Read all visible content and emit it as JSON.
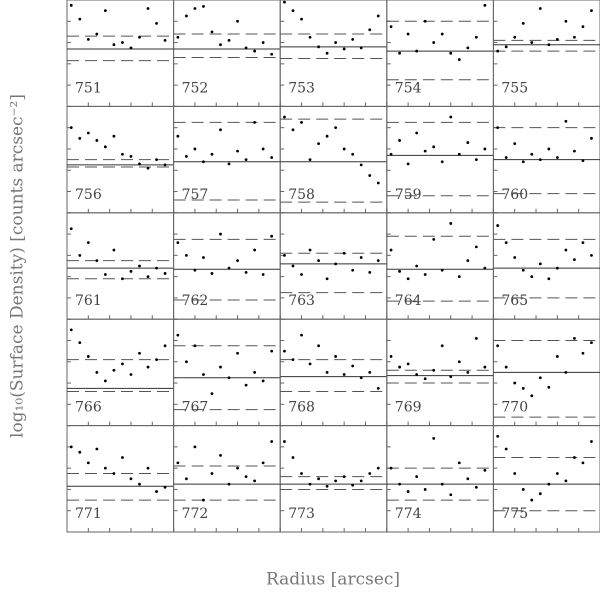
{
  "figure": {
    "xlabel": "Radius [arcsec]",
    "ylabel": "log₁₀(Surface Density) [counts arcsec⁻²]"
  },
  "chart_data": [
    {
      "type": "scatter",
      "label": "751",
      "x": [
        0.4,
        1.2,
        2.0,
        2.8,
        3.6,
        4.4,
        5.2,
        6.0,
        6.8,
        7.6,
        8.4,
        9.2
      ],
      "values": [
        9.5,
        8.2,
        6.3,
        6.8,
        9.0,
        5.8,
        6.0,
        5.5,
        6.5,
        9.2,
        7.8,
        6.2
      ],
      "mean": 5.4,
      "dashed": [
        6.6,
        4.3
      ],
      "xlim": [
        0,
        10
      ],
      "ylim": [
        0,
        10
      ],
      "xticks": [
        0,
        2,
        4,
        6,
        8,
        10
      ],
      "yticks": [
        0,
        2,
        4,
        6,
        8,
        10
      ]
    },
    {
      "type": "scatter",
      "label": "752",
      "x": [
        0.4,
        1.2,
        2.0,
        2.8,
        3.6,
        4.4,
        5.2,
        6.0,
        6.8,
        7.6,
        8.4,
        9.2
      ],
      "values": [
        6.5,
        8.5,
        9.2,
        9.4,
        7.0,
        5.8,
        6.2,
        8.0,
        5.5,
        5.2,
        6.0,
        4.9
      ],
      "mean": 5.4,
      "dashed": [
        6.8,
        4.6
      ],
      "xlim": [
        0,
        10
      ],
      "ylim": [
        0,
        10
      ],
      "xticks": [
        0,
        2,
        4,
        6,
        8,
        10
      ],
      "yticks": [
        0,
        2,
        4,
        6,
        8,
        10
      ]
    },
    {
      "type": "scatter",
      "label": "753",
      "x": [
        0.4,
        1.2,
        2.0,
        2.8,
        3.6,
        4.4,
        5.2,
        6.0,
        6.8,
        7.6,
        8.4,
        9.2
      ],
      "values": [
        9.8,
        9.0,
        8.2,
        6.5,
        5.6,
        5.0,
        6.0,
        5.4,
        6.3,
        5.5,
        7.2,
        8.5
      ],
      "mean": 5.6,
      "dashed": [
        6.8,
        4.5
      ],
      "xlim": [
        0,
        10
      ],
      "ylim": [
        0,
        10
      ],
      "xticks": [
        0,
        2,
        4,
        6,
        8,
        10
      ],
      "yticks": [
        0,
        2,
        4,
        6,
        8,
        10
      ]
    },
    {
      "type": "scatter",
      "label": "754",
      "x": [
        0.4,
        1.2,
        2.0,
        2.8,
        3.6,
        4.4,
        5.2,
        6.0,
        6.8,
        7.6,
        8.4,
        9.2
      ],
      "values": [
        7.5,
        5.0,
        6.8,
        5.2,
        8.0,
        6.0,
        6.8,
        5.0,
        4.4,
        5.5,
        6.5,
        9.5
      ],
      "mean": 5.2,
      "dashed": [
        8.0,
        2.5
      ],
      "xlim": [
        0,
        10
      ],
      "ylim": [
        0,
        10
      ],
      "xticks": [
        0,
        2,
        4,
        6,
        8,
        10
      ],
      "yticks": [
        0,
        2,
        4,
        6,
        8,
        10
      ]
    },
    {
      "type": "scatter",
      "label": "755",
      "x": [
        0.4,
        1.2,
        2.0,
        2.8,
        3.6,
        4.4,
        5.2,
        6.0,
        6.8,
        7.6,
        8.4,
        9.2
      ],
      "values": [
        5.2,
        5.6,
        6.5,
        7.8,
        6.0,
        9.2,
        5.8,
        6.3,
        8.0,
        6.5,
        7.5,
        9.0
      ],
      "mean": 5.8,
      "dashed": [
        6.2,
        5.2
      ],
      "xlim": [
        0,
        10
      ],
      "ylim": [
        0,
        10
      ],
      "xticks": [
        0,
        2,
        4,
        6,
        8,
        10
      ],
      "yticks": [
        0,
        2,
        4,
        6,
        8,
        10
      ]
    },
    {
      "type": "scatter",
      "label": "756",
      "x": [
        0.4,
        1.2,
        2.0,
        2.8,
        3.6,
        4.4,
        5.2,
        6.0,
        6.8,
        7.6,
        8.4,
        9.2
      ],
      "values": [
        8.0,
        7.0,
        7.5,
        6.8,
        6.2,
        7.2,
        5.5,
        5.3,
        4.6,
        4.2,
        5.0,
        4.5
      ],
      "mean": 4.5,
      "dashed": [
        5.0,
        4.3
      ],
      "xlim": [
        0,
        10
      ],
      "ylim": [
        0,
        10
      ],
      "xticks": [
        0,
        2,
        4,
        6,
        8,
        10
      ],
      "yticks": [
        0,
        2,
        4,
        6,
        8,
        10
      ]
    },
    {
      "type": "scatter",
      "label": "757",
      "x": [
        0.4,
        1.2,
        2.0,
        2.8,
        3.6,
        4.4,
        5.2,
        6.0,
        6.8,
        7.6,
        8.4,
        9.2
      ],
      "values": [
        7.2,
        5.3,
        6.0,
        4.8,
        5.5,
        7.8,
        4.6,
        5.8,
        5.0,
        8.5,
        6.0,
        5.2
      ],
      "mean": 4.8,
      "dashed": [
        8.5,
        1.2
      ],
      "xlim": [
        0,
        10
      ],
      "ylim": [
        0,
        10
      ],
      "xticks": [
        0,
        2,
        4,
        6,
        8,
        10
      ],
      "yticks": [
        0,
        2,
        4,
        6,
        8,
        10
      ]
    },
    {
      "type": "scatter",
      "label": "758",
      "x": [
        0.4,
        1.2,
        2.0,
        2.8,
        3.6,
        4.4,
        5.2,
        6.0,
        6.8,
        7.6,
        8.4,
        9.2
      ],
      "values": [
        9.0,
        7.8,
        8.5,
        5.0,
        6.5,
        7.2,
        8.0,
        6.0,
        5.5,
        4.5,
        3.5,
        2.8
      ],
      "mean": 4.8,
      "dashed": [
        8.8,
        1.0
      ],
      "xlim": [
        0,
        10
      ],
      "ylim": [
        0,
        10
      ],
      "xticks": [
        0,
        2,
        4,
        6,
        8,
        10
      ],
      "yticks": [
        0,
        2,
        4,
        6,
        8,
        10
      ]
    },
    {
      "type": "scatter",
      "label": "759",
      "x": [
        0.4,
        1.2,
        2.0,
        2.8,
        3.6,
        4.4,
        5.2,
        6.0,
        6.8,
        7.6,
        8.4,
        9.2
      ],
      "values": [
        5.5,
        6.8,
        4.6,
        7.5,
        5.8,
        6.2,
        4.8,
        9.0,
        5.5,
        6.6,
        5.0,
        6.0
      ],
      "mean": 5.4,
      "dashed": [
        8.5,
        1.6
      ],
      "xlim": [
        0,
        10
      ],
      "ylim": [
        0,
        10
      ],
      "xticks": [
        0,
        2,
        4,
        6,
        8,
        10
      ],
      "yticks": [
        0,
        2,
        4,
        6,
        8,
        10
      ]
    },
    {
      "type": "scatter",
      "label": "760",
      "x": [
        0.4,
        1.2,
        2.0,
        2.8,
        3.6,
        4.4,
        5.2,
        6.0,
        6.8,
        7.6,
        8.4,
        9.2
      ],
      "values": [
        8.0,
        5.2,
        6.5,
        4.8,
        5.5,
        5.0,
        6.0,
        5.2,
        8.6,
        5.8,
        4.9,
        7.0
      ],
      "mean": 5.0,
      "dashed": [
        8.0,
        1.8
      ],
      "xlim": [
        0,
        10
      ],
      "ylim": [
        0,
        10
      ],
      "xticks": [
        0,
        2,
        4,
        6,
        8,
        10
      ],
      "yticks": [
        0,
        2,
        4,
        6,
        8,
        10
      ]
    },
    {
      "type": "scatter",
      "label": "761",
      "x": [
        0.4,
        1.2,
        2.0,
        2.8,
        3.6,
        4.4,
        5.2,
        6.0,
        6.8,
        7.6,
        8.4,
        9.2
      ],
      "values": [
        8.5,
        6.0,
        7.2,
        5.5,
        4.2,
        6.5,
        3.8,
        4.5,
        5.0,
        4.0,
        4.8,
        4.3
      ],
      "mean": 4.8,
      "dashed": [
        5.5,
        3.8
      ],
      "xlim": [
        0,
        10
      ],
      "ylim": [
        0,
        10
      ],
      "xticks": [
        0,
        2,
        4,
        6,
        8,
        10
      ],
      "yticks": [
        0,
        2,
        4,
        6,
        8,
        10
      ]
    },
    {
      "type": "scatter",
      "label": "762",
      "x": [
        0.4,
        1.2,
        2.0,
        2.8,
        3.6,
        4.4,
        5.2,
        6.0,
        6.8,
        7.6,
        8.4,
        9.2
      ],
      "values": [
        7.2,
        6.0,
        4.6,
        5.8,
        4.3,
        8.0,
        4.8,
        5.5,
        4.4,
        6.5,
        4.2,
        7.8
      ],
      "mean": 4.7,
      "dashed": [
        7.5,
        1.8
      ],
      "xlim": [
        0,
        10
      ],
      "ylim": [
        0,
        10
      ],
      "xticks": [
        0,
        2,
        4,
        6,
        8,
        10
      ],
      "yticks": [
        0,
        2,
        4,
        6,
        8,
        10
      ]
    },
    {
      "type": "scatter",
      "label": "763",
      "x": [
        0.4,
        1.2,
        2.0,
        2.8,
        3.6,
        4.4,
        5.2,
        6.0,
        6.8,
        7.6,
        8.4,
        9.2
      ],
      "values": [
        6.0,
        5.0,
        4.2,
        6.5,
        5.5,
        3.8,
        5.2,
        6.2,
        4.6,
        5.8,
        4.4,
        5.5
      ],
      "mean": 5.2,
      "dashed": [
        6.2,
        2.5
      ],
      "xlim": [
        0,
        10
      ],
      "ylim": [
        0,
        10
      ],
      "xticks": [
        0,
        2,
        4,
        6,
        8,
        10
      ],
      "yticks": [
        0,
        2,
        4,
        6,
        8,
        10
      ]
    },
    {
      "type": "scatter",
      "label": "764",
      "x": [
        0.4,
        1.2,
        2.0,
        2.8,
        3.6,
        4.4,
        5.2,
        6.0,
        6.8,
        7.6,
        8.4,
        9.2
      ],
      "values": [
        6.5,
        4.5,
        3.8,
        5.0,
        4.2,
        7.5,
        4.6,
        9.0,
        4.0,
        5.5,
        6.8,
        4.8
      ],
      "mean": 4.7,
      "dashed": [
        7.8,
        1.7
      ],
      "xlim": [
        0,
        10
      ],
      "ylim": [
        0,
        10
      ],
      "xticks": [
        0,
        2,
        4,
        6,
        8,
        10
      ],
      "yticks": [
        0,
        2,
        4,
        6,
        8,
        10
      ]
    },
    {
      "type": "scatter",
      "label": "765",
      "x": [
        0.4,
        1.2,
        2.0,
        2.8,
        3.6,
        4.4,
        5.2,
        6.0,
        6.8,
        7.6,
        8.4,
        9.2
      ],
      "values": [
        8.8,
        7.2,
        5.8,
        4.6,
        4.0,
        5.2,
        3.8,
        4.8,
        6.5,
        5.6,
        7.2,
        6.0
      ],
      "mean": 4.8,
      "dashed": [
        7.5,
        2.0
      ],
      "xlim": [
        0,
        10
      ],
      "ylim": [
        0,
        10
      ],
      "xticks": [
        0,
        2,
        4,
        6,
        8,
        10
      ],
      "yticks": [
        0,
        2,
        4,
        6,
        8,
        10
      ]
    },
    {
      "type": "scatter",
      "label": "766",
      "x": [
        0.4,
        1.2,
        2.0,
        2.8,
        3.6,
        4.4,
        5.2,
        6.0,
        6.8,
        7.6,
        8.4,
        9.2
      ],
      "values": [
        9.0,
        7.8,
        6.5,
        5.0,
        4.2,
        5.2,
        5.8,
        4.8,
        6.8,
        5.5,
        6.2,
        7.5
      ],
      "mean": 3.5,
      "dashed": [
        6.2,
        3.2
      ],
      "xlim": [
        0,
        10
      ],
      "ylim": [
        0,
        10
      ],
      "xticks": [
        0,
        2,
        4,
        6,
        8,
        10
      ],
      "yticks": [
        0,
        2,
        4,
        6,
        8,
        10
      ]
    },
    {
      "type": "scatter",
      "label": "767",
      "x": [
        0.4,
        1.2,
        2.0,
        2.8,
        3.6,
        4.4,
        5.2,
        6.0,
        6.8,
        7.6,
        8.4,
        9.2
      ],
      "values": [
        8.5,
        6.0,
        7.5,
        4.8,
        3.0,
        5.5,
        4.5,
        6.8,
        3.8,
        5.0,
        4.2,
        7.0
      ],
      "mean": 4.5,
      "dashed": [
        7.5,
        1.5
      ],
      "xlim": [
        0,
        10
      ],
      "ylim": [
        0,
        10
      ],
      "xticks": [
        0,
        2,
        4,
        6,
        8,
        10
      ],
      "yticks": [
        0,
        2,
        4,
        6,
        8,
        10
      ]
    },
    {
      "type": "scatter",
      "label": "768",
      "x": [
        0.4,
        1.2,
        2.0,
        2.8,
        3.6,
        4.4,
        5.2,
        6.0,
        6.8,
        7.6,
        8.4,
        9.2
      ],
      "values": [
        7.0,
        6.2,
        8.5,
        5.8,
        7.5,
        5.0,
        6.5,
        4.8,
        5.6,
        4.5,
        5.0,
        3.5
      ],
      "mean": 4.6,
      "dashed": [
        6.2,
        3.2
      ],
      "xlim": [
        0,
        10
      ],
      "ylim": [
        0,
        10
      ],
      "xticks": [
        0,
        2,
        4,
        6,
        8,
        10
      ],
      "yticks": [
        0,
        2,
        4,
        6,
        8,
        10
      ]
    },
    {
      "type": "scatter",
      "label": "769",
      "x": [
        0.4,
        1.2,
        2.0,
        2.8,
        3.6,
        4.4,
        5.2,
        6.0,
        6.8,
        7.6,
        8.4,
        9.2
      ],
      "values": [
        6.5,
        5.5,
        5.8,
        4.8,
        4.4,
        5.2,
        7.5,
        4.6,
        6.0,
        5.0,
        8.2,
        5.5
      ],
      "mean": 4.7,
      "dashed": [
        5.2,
        4.0
      ],
      "xlim": [
        0,
        10
      ],
      "ylim": [
        0,
        10
      ],
      "xticks": [
        0,
        2,
        4,
        6,
        8,
        10
      ],
      "yticks": [
        0,
        2,
        4,
        6,
        8,
        10
      ]
    },
    {
      "type": "scatter",
      "label": "770",
      "x": [
        0.4,
        1.2,
        2.0,
        2.8,
        3.6,
        4.4,
        5.2,
        6.0,
        6.8,
        7.6,
        8.4,
        9.2
      ],
      "values": [
        7.5,
        5.5,
        4.0,
        3.5,
        2.8,
        4.5,
        3.6,
        6.5,
        5.0,
        8.2,
        6.8,
        7.8
      ],
      "mean": 5.0,
      "dashed": [
        8.0,
        0.8
      ],
      "xlim": [
        0,
        10
      ],
      "ylim": [
        0,
        10
      ],
      "xticks": [
        0,
        2,
        4,
        6,
        8,
        10
      ],
      "yticks": [
        0,
        2,
        4,
        6,
        8,
        10
      ]
    },
    {
      "type": "scatter",
      "label": "771",
      "x": [
        0.4,
        1.2,
        2.0,
        2.8,
        3.6,
        4.4,
        5.2,
        6.0,
        6.8,
        7.6,
        8.4,
        9.2
      ],
      "values": [
        8.0,
        7.5,
        6.5,
        7.8,
        6.0,
        5.5,
        7.0,
        5.0,
        4.5,
        6.0,
        3.8,
        4.2
      ],
      "mean": 4.3,
      "dashed": [
        5.5,
        3.0
      ],
      "xlim": [
        0,
        10
      ],
      "ylim": [
        0,
        10
      ],
      "xticks": [
        0,
        2,
        4,
        6,
        8,
        10
      ],
      "yticks": [
        0,
        2,
        4,
        6,
        8,
        10
      ]
    },
    {
      "type": "scatter",
      "label": "772",
      "x": [
        0.4,
        1.2,
        2.0,
        2.8,
        3.6,
        4.4,
        5.2,
        6.0,
        6.8,
        7.6,
        8.4,
        9.2
      ],
      "values": [
        6.5,
        5.0,
        8.0,
        3.0,
        5.5,
        7.2,
        4.5,
        6.0,
        5.2,
        4.8,
        6.5,
        8.5
      ],
      "mean": 4.5,
      "dashed": [
        6.2,
        3.0
      ],
      "xlim": [
        0,
        10
      ],
      "ylim": [
        0,
        10
      ],
      "xticks": [
        0,
        2,
        4,
        6,
        8,
        10
      ],
      "yticks": [
        0,
        2,
        4,
        6,
        8,
        10
      ]
    },
    {
      "type": "scatter",
      "label": "773",
      "x": [
        0.4,
        1.2,
        2.0,
        2.8,
        3.6,
        4.4,
        5.2,
        6.0,
        6.8,
        7.6,
        8.4,
        9.2
      ],
      "values": [
        8.5,
        7.0,
        5.5,
        4.5,
        5.0,
        4.3,
        4.8,
        5.2,
        4.4,
        4.8,
        5.5,
        6.0
      ],
      "mean": 4.5,
      "dashed": [
        5.2,
        4.0
      ],
      "xlim": [
        0,
        10
      ],
      "ylim": [
        0,
        10
      ],
      "xticks": [
        0,
        2,
        4,
        6,
        8,
        10
      ],
      "yticks": [
        0,
        2,
        4,
        6,
        8,
        10
      ]
    },
    {
      "type": "scatter",
      "label": "774",
      "x": [
        0.4,
        1.2,
        2.0,
        2.8,
        3.6,
        4.4,
        5.2,
        6.0,
        6.8,
        7.6,
        8.4,
        9.2
      ],
      "values": [
        6.0,
        4.5,
        3.8,
        5.2,
        4.0,
        8.8,
        4.5,
        3.5,
        6.5,
        5.0,
        4.2,
        5.8
      ],
      "mean": 4.5,
      "dashed": [
        6.0,
        3.0
      ],
      "xlim": [
        0,
        10
      ],
      "ylim": [
        0,
        10
      ],
      "xticks": [
        0,
        2,
        4,
        6,
        8,
        10
      ],
      "yticks": [
        0,
        2,
        4,
        6,
        8,
        10
      ]
    },
    {
      "type": "scatter",
      "label": "775",
      "x": [
        0.4,
        1.2,
        2.0,
        2.8,
        3.6,
        4.4,
        5.2,
        6.0,
        6.8,
        7.6,
        8.4,
        9.2
      ],
      "values": [
        9.0,
        7.8,
        5.5,
        4.0,
        3.0,
        3.6,
        4.5,
        5.5,
        4.8,
        7.0,
        6.5,
        8.5
      ],
      "mean": 4.5,
      "dashed": [
        7.0,
        2.0
      ],
      "xlim": [
        0,
        10
      ],
      "ylim": [
        0,
        10
      ],
      "xticks": [
        0,
        2,
        4,
        6,
        8,
        10
      ],
      "yticks": [
        0,
        2,
        4,
        6,
        8,
        10
      ]
    }
  ]
}
